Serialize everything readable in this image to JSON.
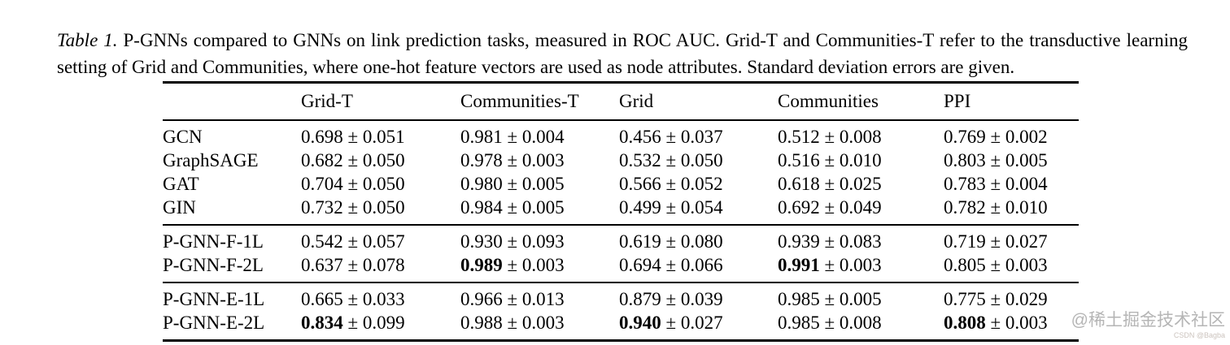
{
  "caption": {
    "label": "Table 1.",
    "text": " P-GNNs compared to GNNs on link prediction tasks, measured in ROC AUC. Grid-T and Communities-T refer to the transductive learning setting of Grid and Communities, where one-hot feature vectors are used as node attributes. Standard deviation errors are given."
  },
  "table": {
    "pm": "±",
    "columns": [
      "",
      "Grid-T",
      "Communities-T",
      "Grid",
      "Communities",
      "PPI"
    ],
    "groups": [
      {
        "rows": [
          {
            "model": "GCN",
            "cells": [
              {
                "value": "0.698",
                "std": "0.051",
                "bold": false
              },
              {
                "value": "0.981",
                "std": "0.004",
                "bold": false
              },
              {
                "value": "0.456",
                "std": "0.037",
                "bold": false
              },
              {
                "value": "0.512",
                "std": "0.008",
                "bold": false
              },
              {
                "value": "0.769",
                "std": "0.002",
                "bold": false
              }
            ]
          },
          {
            "model": "GraphSAGE",
            "cells": [
              {
                "value": "0.682",
                "std": "0.050",
                "bold": false
              },
              {
                "value": "0.978",
                "std": "0.003",
                "bold": false
              },
              {
                "value": "0.532",
                "std": "0.050",
                "bold": false
              },
              {
                "value": "0.516",
                "std": "0.010",
                "bold": false
              },
              {
                "value": "0.803",
                "std": "0.005",
                "bold": false
              }
            ]
          },
          {
            "model": "GAT",
            "cells": [
              {
                "value": "0.704",
                "std": "0.050",
                "bold": false
              },
              {
                "value": "0.980",
                "std": "0.005",
                "bold": false
              },
              {
                "value": "0.566",
                "std": "0.052",
                "bold": false
              },
              {
                "value": "0.618",
                "std": "0.025",
                "bold": false
              },
              {
                "value": "0.783",
                "std": "0.004",
                "bold": false
              }
            ]
          },
          {
            "model": "GIN",
            "cells": [
              {
                "value": "0.732",
                "std": "0.050",
                "bold": false
              },
              {
                "value": "0.984",
                "std": "0.005",
                "bold": false
              },
              {
                "value": "0.499",
                "std": "0.054",
                "bold": false
              },
              {
                "value": "0.692",
                "std": "0.049",
                "bold": false
              },
              {
                "value": "0.782",
                "std": "0.010",
                "bold": false
              }
            ]
          }
        ]
      },
      {
        "rows": [
          {
            "model": "P-GNN-F-1L",
            "cells": [
              {
                "value": "0.542",
                "std": "0.057",
                "bold": false
              },
              {
                "value": "0.930",
                "std": "0.093",
                "bold": false
              },
              {
                "value": "0.619",
                "std": "0.080",
                "bold": false
              },
              {
                "value": "0.939",
                "std": "0.083",
                "bold": false
              },
              {
                "value": "0.719",
                "std": "0.027",
                "bold": false
              }
            ]
          },
          {
            "model": "P-GNN-F-2L",
            "cells": [
              {
                "value": "0.637",
                "std": "0.078",
                "bold": false
              },
              {
                "value": "0.989",
                "std": "0.003",
                "bold": true
              },
              {
                "value": "0.694",
                "std": "0.066",
                "bold": false
              },
              {
                "value": "0.991",
                "std": "0.003",
                "bold": true
              },
              {
                "value": "0.805",
                "std": "0.003",
                "bold": false
              }
            ]
          }
        ]
      },
      {
        "rows": [
          {
            "model": "P-GNN-E-1L",
            "cells": [
              {
                "value": "0.665",
                "std": "0.033",
                "bold": false
              },
              {
                "value": "0.966",
                "std": "0.013",
                "bold": false
              },
              {
                "value": "0.879",
                "std": "0.039",
                "bold": false
              },
              {
                "value": "0.985",
                "std": "0.005",
                "bold": false
              },
              {
                "value": "0.775",
                "std": "0.029",
                "bold": false
              }
            ]
          },
          {
            "model": "P-GNN-E-2L",
            "cells": [
              {
                "value": "0.834",
                "std": "0.099",
                "bold": true
              },
              {
                "value": "0.988",
                "std": "0.003",
                "bold": false
              },
              {
                "value": "0.940",
                "std": "0.027",
                "bold": true
              },
              {
                "value": "0.985",
                "std": "0.008",
                "bold": false
              },
              {
                "value": "0.808",
                "std": "0.003",
                "bold": true
              }
            ]
          }
        ]
      }
    ]
  },
  "watermark": {
    "main": "@稀土掘金技术社区",
    "sub": "CSDN @Bagba"
  }
}
